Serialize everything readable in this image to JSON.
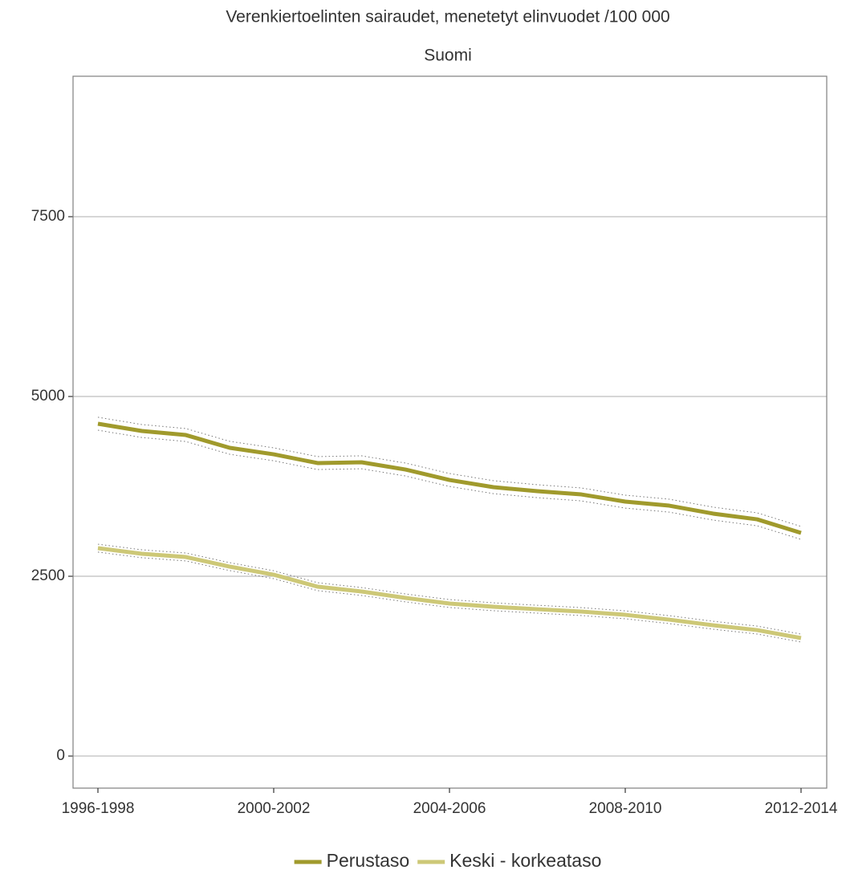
{
  "chart_data": {
    "type": "line",
    "title": "Verenkiertoelinten sairaudet, menetetyt elinvuodet /100 000",
    "subtitle": "Suomi",
    "categories": [
      "1996-1998",
      null,
      null,
      null,
      "2000-2002",
      null,
      null,
      null,
      "2004-2006",
      null,
      null,
      null,
      "2008-2010",
      null,
      null,
      null,
      "2012-2014"
    ],
    "series": [
      {
        "name": "Perustaso",
        "color": "#a09a2c",
        "values": [
          4621,
          4520,
          4464,
          4286,
          4196,
          4074,
          4085,
          3984,
          3839,
          3739,
          3683,
          3638,
          3538,
          3482,
          3371,
          3292,
          3103
        ],
        "upper": [
          4711,
          4610,
          4554,
          4376,
          4286,
          4164,
          4175,
          4074,
          3929,
          3829,
          3773,
          3728,
          3628,
          3572,
          3461,
          3382,
          3193
        ],
        "lower": [
          4531,
          4430,
          4374,
          4196,
          4106,
          3984,
          3995,
          3894,
          3749,
          3649,
          3593,
          3548,
          3448,
          3392,
          3281,
          3202,
          3013
        ]
      },
      {
        "name": "Keski - korkeataso",
        "color": "#cdc877",
        "values": [
          2891,
          2813,
          2768,
          2634,
          2522,
          2355,
          2288,
          2199,
          2121,
          2076,
          2042,
          2009,
          1964,
          1897,
          1819,
          1752,
          1641
        ],
        "upper": [
          2946,
          2868,
          2823,
          2689,
          2577,
          2410,
          2343,
          2254,
          2176,
          2131,
          2097,
          2064,
          2019,
          1952,
          1874,
          1807,
          1696
        ],
        "lower": [
          2836,
          2758,
          2713,
          2579,
          2467,
          2300,
          2233,
          2144,
          2066,
          2021,
          1987,
          1954,
          1909,
          1842,
          1764,
          1697,
          1586
        ]
      }
    ],
    "ylim": [
      -446,
      9453
    ],
    "yticks": [
      0,
      2500,
      5000,
      7500
    ],
    "grid": true,
    "legend": "bottom"
  }
}
